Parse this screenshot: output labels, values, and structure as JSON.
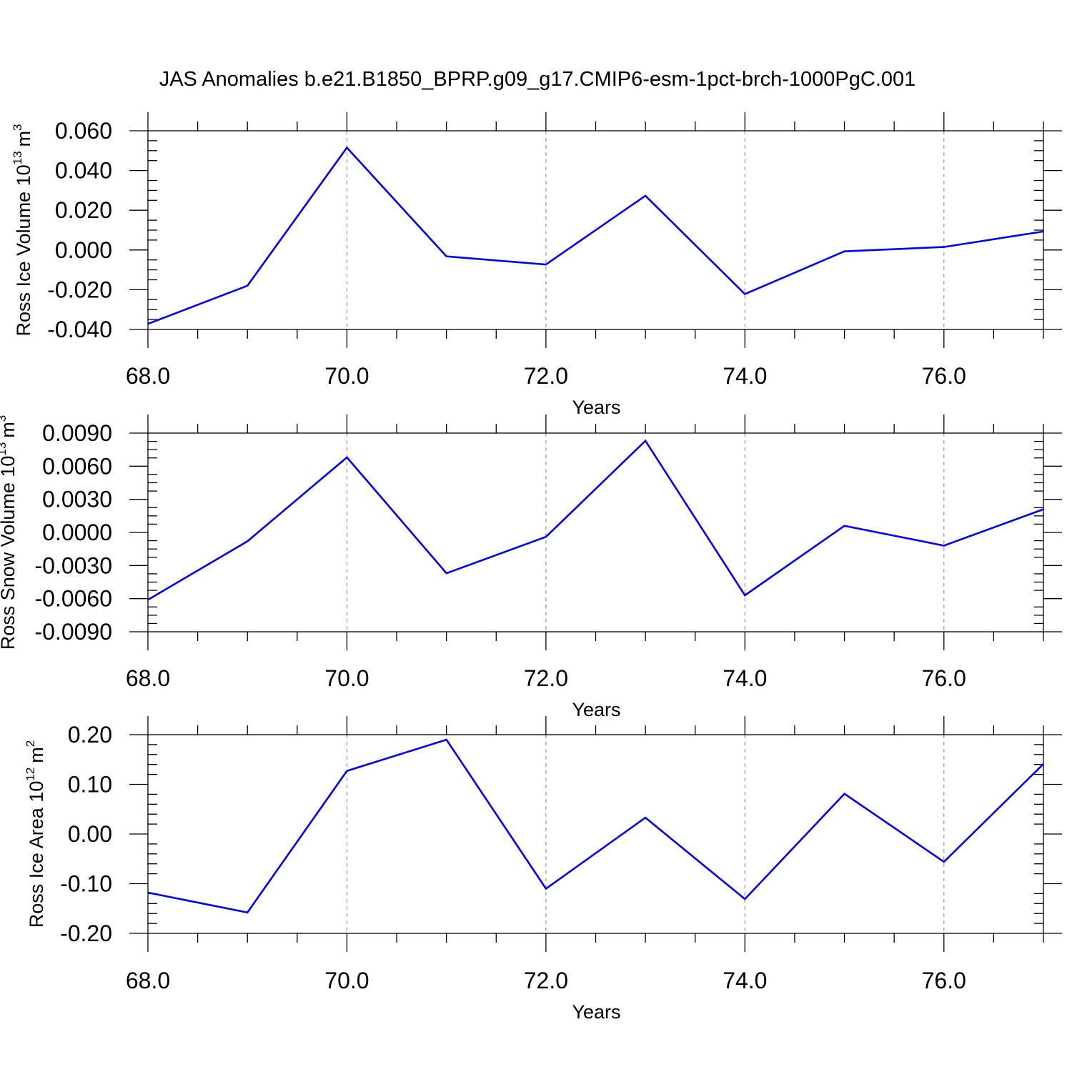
{
  "title": "JAS Anomalies b.e21.B1850_BPRP.g09_g17.CMIP6-esm-1pct-brch-1000PgC.001",
  "line_color": "#0000ff",
  "chart_data": [
    {
      "type": "line",
      "ylabel": "Ross Ice Volume 10",
      "ylabel_exp": "13",
      "ylabel_unit": "m",
      "ylabel_unit_exp": "3",
      "xlabel": "Years",
      "xlim": [
        68,
        77
      ],
      "ylim": [
        -0.04,
        0.06
      ],
      "x_ticks": [
        68,
        70,
        72,
        74,
        76
      ],
      "x_tick_labels": [
        "68.0",
        "70.0",
        "72.0",
        "74.0",
        "76.0"
      ],
      "y_ticks": [
        -0.04,
        -0.02,
        0.0,
        0.02,
        0.04,
        0.06
      ],
      "y_tick_labels": [
        "-0.040",
        "-0.020",
        "0.000",
        "0.020",
        "0.040",
        "0.060"
      ],
      "x_minor_step": 0.5,
      "y_minor_step": 0.005,
      "grid": "vertical dashed at major x ticks",
      "x": [
        68,
        69,
        70,
        71,
        72,
        73,
        74,
        75,
        76,
        77
      ],
      "y": [
        -0.0372,
        -0.018,
        0.0515,
        -0.0032,
        -0.0073,
        0.0273,
        -0.0222,
        -0.0007,
        0.0015,
        0.0093
      ]
    },
    {
      "type": "line",
      "ylabel": "Ross Snow Volume 10",
      "ylabel_exp": "13",
      "ylabel_unit": "m",
      "ylabel_unit_exp": "3",
      "xlabel": "Years",
      "xlim": [
        68,
        77
      ],
      "ylim": [
        -0.009,
        0.009
      ],
      "x_ticks": [
        68,
        70,
        72,
        74,
        76
      ],
      "x_tick_labels": [
        "68.0",
        "70.0",
        "72.0",
        "74.0",
        "76.0"
      ],
      "y_ticks": [
        -0.009,
        -0.006,
        -0.003,
        0.0,
        0.003,
        0.006,
        0.009
      ],
      "y_tick_labels": [
        "-0.0090",
        "-0.0060",
        "-0.0030",
        "0.0000",
        "0.0030",
        "0.0060",
        "0.0090"
      ],
      "x_minor_step": 0.5,
      "y_minor_step": 0.00075,
      "grid": "vertical dashed at major x ticks",
      "x": [
        68,
        69,
        70,
        71,
        72,
        73,
        74,
        75,
        76,
        77
      ],
      "y": [
        -0.0061,
        -0.0008,
        0.0068,
        -0.0037,
        -0.0004,
        0.0083,
        -0.0057,
        0.0006,
        -0.0012,
        0.0021
      ]
    },
    {
      "type": "line",
      "ylabel": "Ross Ice Area 10",
      "ylabel_exp": "12",
      "ylabel_unit": "m",
      "ylabel_unit_exp": "2",
      "xlabel": "Years",
      "xlim": [
        68,
        77
      ],
      "ylim": [
        -0.2,
        0.2
      ],
      "x_ticks": [
        68,
        70,
        72,
        74,
        76
      ],
      "x_tick_labels": [
        "68.0",
        "70.0",
        "72.0",
        "74.0",
        "76.0"
      ],
      "y_ticks": [
        -0.2,
        -0.1,
        0.0,
        0.1,
        0.2
      ],
      "y_tick_labels": [
        "-0.20",
        "-0.10",
        "0.00",
        "0.10",
        "0.20"
      ],
      "x_minor_step": 0.5,
      "y_minor_step": 0.02,
      "grid": "vertical dashed at major x ticks",
      "x": [
        68,
        69,
        70,
        71,
        72,
        73,
        74,
        75,
        76,
        77
      ],
      "y": [
        -0.118,
        -0.158,
        0.127,
        0.19,
        -0.11,
        0.033,
        -0.131,
        0.081,
        -0.056,
        0.141
      ]
    }
  ]
}
